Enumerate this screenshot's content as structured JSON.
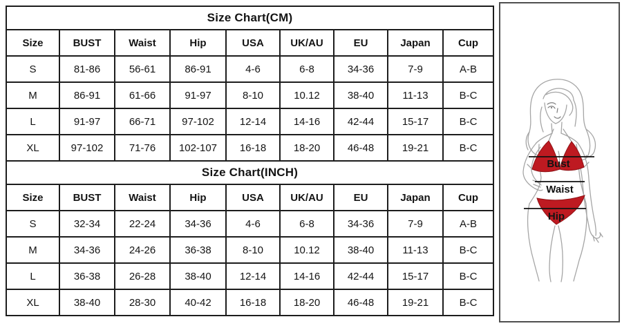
{
  "page": {
    "background": "#ffffff"
  },
  "tables": [
    {
      "title": "Size Chart(CM)",
      "headers": [
        "Size",
        "BUST",
        "Waist",
        "Hip",
        "USA",
        "UK/AU",
        "EU",
        "Japan",
        "Cup"
      ],
      "rows": [
        [
          "S",
          "81-86",
          "56-61",
          "86-91",
          "4-6",
          "6-8",
          "34-36",
          "7-9",
          "A-B"
        ],
        [
          "M",
          "86-91",
          "61-66",
          "91-97",
          "8-10",
          "10.12",
          "38-40",
          "11-13",
          "B-C"
        ],
        [
          "L",
          "91-97",
          "66-71",
          "97-102",
          "12-14",
          "14-16",
          "42-44",
          "15-17",
          "B-C"
        ],
        [
          "XL",
          "97-102",
          "71-76",
          "102-107",
          "16-18",
          "18-20",
          "46-48",
          "19-21",
          "B-C"
        ]
      ]
    },
    {
      "title": "Size Chart(INCH)",
      "headers": [
        "Size",
        "BUST",
        "Waist",
        "Hip",
        "USA",
        "UK/AU",
        "EU",
        "Japan",
        "Cup"
      ],
      "rows": [
        [
          "S",
          "32-34",
          "22-24",
          "34-36",
          "4-6",
          "6-8",
          "34-36",
          "7-9",
          "A-B"
        ],
        [
          "M",
          "34-36",
          "24-26",
          "36-38",
          "8-10",
          "10.12",
          "38-40",
          "11-13",
          "B-C"
        ],
        [
          "L",
          "36-38",
          "26-28",
          "38-40",
          "12-14",
          "14-16",
          "42-44",
          "15-17",
          "B-C"
        ],
        [
          "XL",
          "38-40",
          "28-30",
          "40-42",
          "16-18",
          "18-20",
          "46-48",
          "19-21",
          "B-C"
        ]
      ]
    }
  ],
  "figure": {
    "labels": {
      "bust": "Bust",
      "waist": "Waist",
      "hip": "Hip"
    },
    "colors": {
      "bikini_red": "#be1a21",
      "sketch_gray": "#a5a5a5",
      "measure_line": "#111111",
      "table_border": "#1c1c1c"
    }
  }
}
